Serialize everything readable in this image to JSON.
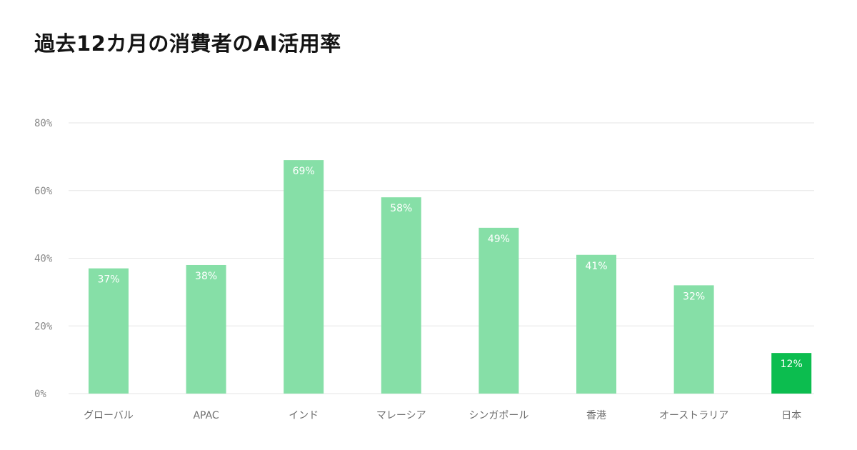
{
  "chart_data": {
    "type": "bar",
    "title": "過去12カ月の消費者のAI活用率",
    "categories": [
      "グローバル",
      "APAC",
      "インド",
      "マレーシア",
      "シンガポール",
      "香港",
      "オーストラリア",
      "日本"
    ],
    "values": [
      37,
      38,
      69,
      58,
      49,
      41,
      32,
      12
    ],
    "value_labels": [
      "37%",
      "38%",
      "69%",
      "58%",
      "49%",
      "41%",
      "32%",
      "12%"
    ],
    "highlight_category": "日本",
    "ylim": [
      0,
      80
    ],
    "yticks": [
      0,
      20,
      40,
      60,
      80
    ],
    "ytick_labels": [
      "0%",
      "20%",
      "40%",
      "60%",
      "80%"
    ],
    "xlabel": "",
    "ylabel": "",
    "grid": true,
    "legend": "none",
    "colors": {
      "bar": "#86dfa7",
      "highlight": "#0cbd4f",
      "grid": "#e6e6e6",
      "baseline": "#e6e6e6"
    }
  }
}
